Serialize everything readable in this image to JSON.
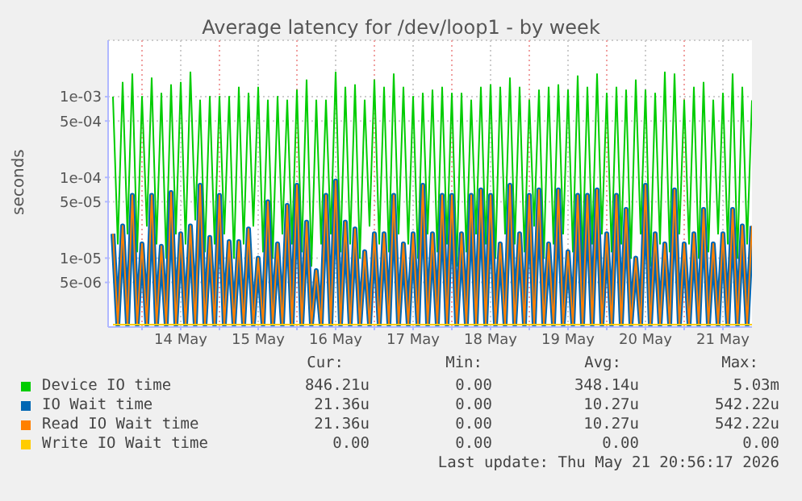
{
  "chart_data": {
    "type": "line",
    "title": "Average latency for /dev/loop1 - by week",
    "ylabel": "seconds",
    "log": true,
    "grid": true,
    "legend": "bottom",
    "marker": "none",
    "line_style": "solid",
    "xlim": [
      "2026-05-13T13:30",
      "2026-05-21T21:00"
    ],
    "xticks": [
      {
        "value": "2026-05-14T00:00",
        "label": null
      },
      {
        "value": "2026-05-14T12:00",
        "label": "14 May"
      },
      {
        "value": "2026-05-15T00:00",
        "label": null
      },
      {
        "value": "2026-05-15T12:00",
        "label": "15 May"
      },
      {
        "value": "2026-05-16T00:00",
        "label": null
      },
      {
        "value": "2026-05-16T12:00",
        "label": "16 May"
      },
      {
        "value": "2026-05-17T00:00",
        "label": null
      },
      {
        "value": "2026-05-17T12:00",
        "label": "17 May"
      },
      {
        "value": "2026-05-18T00:00",
        "label": null
      },
      {
        "value": "2026-05-18T12:00",
        "label": "18 May"
      },
      {
        "value": "2026-05-19T00:00",
        "label": null
      },
      {
        "value": "2026-05-19T12:00",
        "label": "19 May"
      },
      {
        "value": "2026-05-20T00:00",
        "label": null
      },
      {
        "value": "2026-05-20T12:00",
        "label": "20 May"
      },
      {
        "value": "2026-05-21T00:00",
        "label": null
      },
      {
        "value": "2026-05-21T12:00",
        "label": "21 May"
      }
    ],
    "ylim": [
      1.4e-06,
      0.005
    ],
    "yticks": [
      {
        "value": 5e-06,
        "label": "5e-06"
      },
      {
        "value": 1e-05,
        "label": "1e-05"
      },
      {
        "value": 5e-05,
        "label": "5e-05"
      },
      {
        "value": 0.0001,
        "label": "1e-04"
      },
      {
        "value": 0.0005,
        "label": "5e-04"
      },
      {
        "value": 0.001,
        "label": "1e-03"
      }
    ],
    "x": [
      "2026-05-13T15:00",
      "2026-05-13T16:30",
      "2026-05-13T18:00",
      "2026-05-13T19:30",
      "2026-05-13T21:00",
      "2026-05-13T22:30",
      "2026-05-14T00:00",
      "2026-05-14T01:30",
      "2026-05-14T03:00",
      "2026-05-14T04:30",
      "2026-05-14T06:00",
      "2026-05-14T07:30",
      "2026-05-14T09:00",
      "2026-05-14T10:30",
      "2026-05-14T12:00",
      "2026-05-14T13:30",
      "2026-05-14T15:00",
      "2026-05-14T16:30",
      "2026-05-14T18:00",
      "2026-05-14T19:30",
      "2026-05-14T21:00",
      "2026-05-14T22:30",
      "2026-05-15T00:00",
      "2026-05-15T01:30",
      "2026-05-15T03:00",
      "2026-05-15T04:30",
      "2026-05-15T06:00",
      "2026-05-15T07:30",
      "2026-05-15T09:00",
      "2026-05-15T10:30",
      "2026-05-15T12:00",
      "2026-05-15T13:30",
      "2026-05-15T15:00",
      "2026-05-15T16:30",
      "2026-05-15T18:00",
      "2026-05-15T19:30",
      "2026-05-15T21:00",
      "2026-05-15T22:30",
      "2026-05-16T00:00",
      "2026-05-16T01:30",
      "2026-05-16T03:00",
      "2026-05-16T04:30",
      "2026-05-16T06:00",
      "2026-05-16T07:30",
      "2026-05-16T09:00",
      "2026-05-16T10:30",
      "2026-05-16T12:00",
      "2026-05-16T13:30",
      "2026-05-16T15:00",
      "2026-05-16T16:30",
      "2026-05-16T18:00",
      "2026-05-16T19:30",
      "2026-05-16T21:00",
      "2026-05-16T22:30",
      "2026-05-17T00:00",
      "2026-05-17T01:30",
      "2026-05-17T03:00",
      "2026-05-17T04:30",
      "2026-05-17T06:00",
      "2026-05-17T07:30",
      "2026-05-17T09:00",
      "2026-05-17T10:30",
      "2026-05-17T12:00",
      "2026-05-17T13:30",
      "2026-05-17T15:00",
      "2026-05-17T16:30",
      "2026-05-17T18:00",
      "2026-05-17T19:30",
      "2026-05-17T21:00",
      "2026-05-17T22:30",
      "2026-05-18T00:00",
      "2026-05-18T01:30",
      "2026-05-18T03:00",
      "2026-05-18T04:30",
      "2026-05-18T06:00",
      "2026-05-18T07:30",
      "2026-05-18T09:00",
      "2026-05-18T10:30",
      "2026-05-18T12:00",
      "2026-05-18T13:30",
      "2026-05-18T15:00",
      "2026-05-18T16:30",
      "2026-05-18T18:00",
      "2026-05-18T19:30",
      "2026-05-18T21:00",
      "2026-05-18T22:30",
      "2026-05-19T00:00",
      "2026-05-19T01:30",
      "2026-05-19T03:00",
      "2026-05-19T04:30",
      "2026-05-19T06:00",
      "2026-05-19T07:30",
      "2026-05-19T09:00",
      "2026-05-19T10:30",
      "2026-05-19T12:00",
      "2026-05-19T13:30",
      "2026-05-19T15:00",
      "2026-05-19T16:30",
      "2026-05-19T18:00",
      "2026-05-19T19:30",
      "2026-05-19T21:00",
      "2026-05-19T22:30",
      "2026-05-20T00:00",
      "2026-05-20T01:30",
      "2026-05-20T03:00",
      "2026-05-20T04:30",
      "2026-05-20T06:00",
      "2026-05-20T07:30",
      "2026-05-20T09:00",
      "2026-05-20T10:30",
      "2026-05-20T12:00",
      "2026-05-20T13:30",
      "2026-05-20T15:00",
      "2026-05-20T16:30",
      "2026-05-20T18:00",
      "2026-05-20T19:30",
      "2026-05-20T21:00",
      "2026-05-20T22:30",
      "2026-05-21T00:00",
      "2026-05-21T01:30",
      "2026-05-21T03:00",
      "2026-05-21T04:30",
      "2026-05-21T06:00",
      "2026-05-21T07:30",
      "2026-05-21T09:00",
      "2026-05-21T10:30",
      "2026-05-21T12:00",
      "2026-05-21T13:30",
      "2026-05-21T15:00",
      "2026-05-21T16:30",
      "2026-05-21T18:00",
      "2026-05-21T19:30",
      "2026-05-21T21:00"
    ],
    "series": [
      {
        "name": "Device IO time",
        "color": "#00cc00",
        "values": [
          0.001,
          1.5e-05,
          0.0015,
          2e-05,
          0.0019,
          1.2e-05,
          0.001,
          2.5e-05,
          0.0017,
          1.5e-05,
          0.0011,
          1e-05,
          0.0014,
          2e-05,
          0.0015,
          1.5e-05,
          0.002,
          3e-05,
          0.0009,
          1.2e-05,
          0.001,
          1.5e-05,
          0.001,
          2e-05,
          0.001,
          1e-05,
          0.0013,
          1.5e-05,
          0.0011,
          2.5e-05,
          0.0013,
          1.2e-05,
          0.0009,
          1e-05,
          0.001,
          2e-05,
          0.0009,
          1.5e-05,
          0.0012,
          1.2e-05,
          0.0016,
          8e-06,
          0.0009,
          1.5e-05,
          0.0009,
          2e-05,
          0.002,
          1.2e-05,
          0.0013,
          1.5e-05,
          0.0014,
          1e-05,
          0.0009,
          2.5e-05,
          0.0016,
          1.5e-05,
          0.0013,
          1.2e-05,
          0.0019,
          2e-05,
          0.0013,
          1.5e-05,
          0.001,
          1e-05,
          0.0011,
          2e-05,
          0.0012,
          1.2e-05,
          0.0013,
          1.5e-05,
          0.0011,
          8e-06,
          0.0011,
          1.2e-05,
          0.0009,
          2e-05,
          0.0013,
          1.5e-05,
          0.0014,
          1e-05,
          0.0013,
          2e-05,
          0.0017,
          1.5e-05,
          0.0013,
          1.2e-05,
          0.0009,
          2.5e-05,
          0.0012,
          1e-05,
          0.0013,
          1.5e-05,
          0.0014,
          2e-05,
          0.0012,
          1.2e-05,
          0.0018,
          1e-05,
          0.0013,
          1.5e-05,
          0.0019,
          2e-05,
          0.0011,
          1.2e-05,
          0.0013,
          1.5e-05,
          0.0012,
          1e-05,
          0.0016,
          2e-05,
          0.0012,
          8e-06,
          0.0011,
          1.5e-05,
          0.002,
          1.2e-05,
          0.0019,
          2e-05,
          0.0009,
          1.5e-05,
          0.0013,
          1e-05,
          0.0015,
          1.2e-05,
          0.0009,
          2e-05,
          0.0011,
          1.5e-05,
          0.0019,
          1e-05,
          0.0013,
          1.5e-05,
          0.0009
        ]
      },
      {
        "name": "IO Wait time",
        "color": "#0066b3",
        "values": [
          2e-05,
          1.5e-06,
          2.5e-05,
          1.5e-06,
          6e-05,
          1.5e-06,
          1.5e-05,
          1.5e-06,
          6e-05,
          1.5e-06,
          1.4e-05,
          1.5e-06,
          6.5e-05,
          1.5e-06,
          2e-05,
          1.5e-06,
          2.5e-05,
          1.5e-06,
          8e-05,
          1.5e-06,
          1.8e-05,
          1.5e-06,
          6e-05,
          1.5e-06,
          1.6e-05,
          1.5e-06,
          1.6e-05,
          1.5e-06,
          2.3e-05,
          1.5e-06,
          1e-05,
          1.5e-06,
          5e-05,
          1.5e-06,
          1.5e-05,
          1.5e-06,
          4.5e-05,
          1.5e-06,
          8e-05,
          1.5e-06,
          2.8e-05,
          1.5e-06,
          7e-06,
          1.5e-06,
          6e-05,
          1.5e-06,
          9e-05,
          1.5e-06,
          2.8e-05,
          1.5e-06,
          2.3e-05,
          1.5e-06,
          1.2e-05,
          1.5e-06,
          2e-05,
          1.5e-06,
          2e-05,
          1.5e-06,
          6e-05,
          1.5e-06,
          1.5e-05,
          1.5e-06,
          2e-05,
          1.5e-06,
          8e-05,
          1.5e-06,
          2e-05,
          1.5e-06,
          6e-05,
          1.5e-06,
          6e-05,
          1.5e-06,
          2e-05,
          1.5e-06,
          6e-05,
          1.5e-06,
          7e-05,
          1.5e-06,
          6e-05,
          1.5e-06,
          1.5e-05,
          1.5e-06,
          8e-05,
          1.5e-06,
          2e-05,
          1.5e-06,
          6e-05,
          1.5e-06,
          7e-05,
          1.5e-06,
          1.5e-05,
          1.5e-06,
          7e-05,
          1.5e-06,
          1.2e-05,
          1.5e-06,
          6e-05,
          1.5e-06,
          6e-05,
          1.5e-06,
          7e-05,
          1.5e-06,
          2e-05,
          1.5e-06,
          6e-05,
          1.5e-06,
          4e-05,
          1.5e-06,
          1e-05,
          1.5e-06,
          8e-05,
          1.5e-06,
          2e-05,
          1.5e-06,
          1.5e-05,
          1.5e-06,
          7e-05,
          1.5e-06,
          1.5e-05,
          1.5e-06,
          2e-05,
          1.5e-06,
          4e-05,
          1.5e-06,
          1.5e-05,
          1.5e-06,
          2e-05,
          1.5e-06,
          4e-05,
          1.5e-06,
          2.5e-05,
          1.5e-06,
          2.5e-05
        ]
      },
      {
        "name": "Read IO Wait time",
        "color": "#ff8000",
        "values": [
          2e-05,
          1.5e-06,
          2.5e-05,
          1.5e-06,
          6e-05,
          1.5e-06,
          1.5e-05,
          1.5e-06,
          6e-05,
          1.5e-06,
          1.4e-05,
          1.5e-06,
          6.5e-05,
          1.5e-06,
          2e-05,
          1.5e-06,
          2.5e-05,
          1.5e-06,
          8e-05,
          1.5e-06,
          1.8e-05,
          1.5e-06,
          6e-05,
          1.5e-06,
          1.6e-05,
          1.5e-06,
          1.6e-05,
          1.5e-06,
          2.3e-05,
          1.5e-06,
          1e-05,
          1.5e-06,
          5e-05,
          1.5e-06,
          1.5e-05,
          1.5e-06,
          4.5e-05,
          1.5e-06,
          8e-05,
          1.5e-06,
          2.8e-05,
          1.5e-06,
          7e-06,
          1.5e-06,
          6e-05,
          1.5e-06,
          9e-05,
          1.5e-06,
          2.8e-05,
          1.5e-06,
          2.3e-05,
          1.5e-06,
          1.2e-05,
          1.5e-06,
          2e-05,
          1.5e-06,
          2e-05,
          1.5e-06,
          6e-05,
          1.5e-06,
          1.5e-05,
          1.5e-06,
          2e-05,
          1.5e-06,
          8e-05,
          1.5e-06,
          2e-05,
          1.5e-06,
          6e-05,
          1.5e-06,
          6e-05,
          1.5e-06,
          2e-05,
          1.5e-06,
          6e-05,
          1.5e-06,
          7e-05,
          1.5e-06,
          6e-05,
          1.5e-06,
          1.5e-05,
          1.5e-06,
          8e-05,
          1.5e-06,
          2e-05,
          1.5e-06,
          6e-05,
          1.5e-06,
          7e-05,
          1.5e-06,
          1.5e-05,
          1.5e-06,
          7e-05,
          1.5e-06,
          1.2e-05,
          1.5e-06,
          6e-05,
          1.5e-06,
          6e-05,
          1.5e-06,
          7e-05,
          1.5e-06,
          2e-05,
          1.5e-06,
          6e-05,
          1.5e-06,
          4e-05,
          1.5e-06,
          1e-05,
          1.5e-06,
          8e-05,
          1.5e-06,
          2e-05,
          1.5e-06,
          1.5e-05,
          1.5e-06,
          7e-05,
          1.5e-06,
          1.5e-05,
          1.5e-06,
          2e-05,
          1.5e-06,
          4e-05,
          1.5e-06,
          1.5e-05,
          1.5e-06,
          2e-05,
          1.5e-06,
          4e-05,
          1.5e-06,
          2.5e-05,
          1.5e-06,
          2.5e-05
        ]
      },
      {
        "name": "Write IO Wait time",
        "color": "#ffcc00",
        "values": [
          1.5e-06,
          1.5e-06,
          1.5e-06,
          1.5e-06,
          1.5e-06,
          1.5e-06,
          1.5e-06,
          1.5e-06,
          1.5e-06,
          1.5e-06,
          1.5e-06,
          1.5e-06,
          1.5e-06,
          1.5e-06,
          1.5e-06,
          1.5e-06,
          1.5e-06,
          1.5e-06,
          1.5e-06,
          1.5e-06,
          1.5e-06,
          1.5e-06,
          1.5e-06,
          1.5e-06,
          1.5e-06,
          1.5e-06,
          1.5e-06,
          1.5e-06,
          1.5e-06,
          1.5e-06,
          1.5e-06,
          1.5e-06,
          1.5e-06,
          1.5e-06,
          1.5e-06,
          1.5e-06,
          1.5e-06,
          1.5e-06,
          1.5e-06,
          1.5e-06,
          1.5e-06,
          1.5e-06,
          1.5e-06,
          1.5e-06,
          1.5e-06,
          1.5e-06,
          1.5e-06,
          1.5e-06,
          1.5e-06,
          1.5e-06,
          1.5e-06,
          1.5e-06,
          1.5e-06,
          1.5e-06,
          1.5e-06,
          1.5e-06,
          1.5e-06,
          1.5e-06,
          1.5e-06,
          1.5e-06,
          1.5e-06,
          1.5e-06,
          1.5e-06,
          1.5e-06,
          1.5e-06,
          1.5e-06,
          1.5e-06,
          1.5e-06,
          1.5e-06,
          1.5e-06,
          1.5e-06,
          1.5e-06,
          1.5e-06,
          1.5e-06,
          1.5e-06,
          1.5e-06,
          1.5e-06,
          1.5e-06,
          1.5e-06,
          1.5e-06,
          1.5e-06,
          1.5e-06,
          1.5e-06,
          1.5e-06,
          1.5e-06,
          1.5e-06,
          1.5e-06,
          1.5e-06,
          1.5e-06,
          1.5e-06,
          1.5e-06,
          1.5e-06,
          1.5e-06,
          1.5e-06,
          1.5e-06,
          1.5e-06,
          1.5e-06,
          1.5e-06,
          1.5e-06,
          1.5e-06,
          1.5e-06,
          1.5e-06,
          1.5e-06,
          1.5e-06,
          1.5e-06,
          1.5e-06,
          1.5e-06,
          1.5e-06,
          1.5e-06,
          1.5e-06,
          1.5e-06,
          1.5e-06,
          1.5e-06,
          1.5e-06,
          1.5e-06,
          1.5e-06,
          1.5e-06,
          1.5e-06,
          1.5e-06,
          1.5e-06,
          1.5e-06,
          1.5e-06,
          1.5e-06,
          1.5e-06,
          1.5e-06,
          1.5e-06,
          1.5e-06,
          1.5e-06,
          1.5e-06,
          1.5e-06,
          1.5e-06,
          1.5e-06,
          1.5e-06
        ]
      }
    ],
    "annotations": [
      "Cur:",
      "Min:",
      "Avg:",
      "Max:",
      "846.21u",
      "0.00",
      "348.14u",
      "5.03m",
      "21.36u",
      "0.00",
      "10.27u",
      "542.22u",
      "21.36u",
      "0.00",
      "10.27u",
      "542.22u",
      "0.00",
      "0.00",
      "0.00",
      "0.00",
      "Last update: Thu May 21 20:56:17 2026"
    ]
  }
}
